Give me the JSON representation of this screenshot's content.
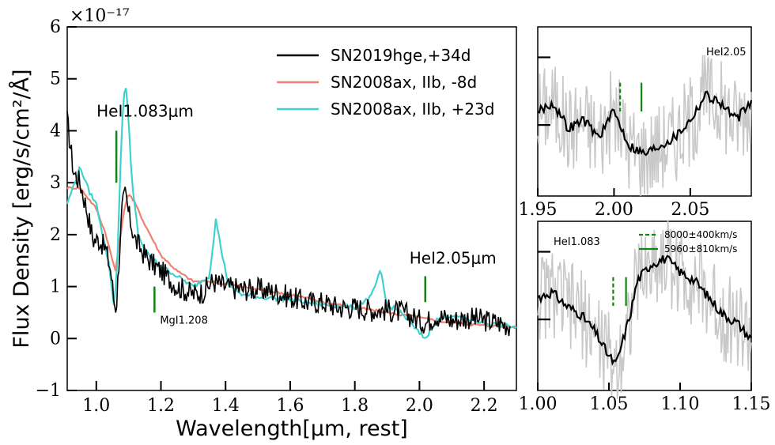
{
  "chart_data": [
    {
      "type": "line",
      "panel": "main",
      "xlabel": "Wavelength[μm, rest]",
      "ylabel": "Flux Density [erg/s/cm²/Å]",
      "scale_label": "×10⁻¹⁷",
      "xlim": [
        0.91,
        2.3
      ],
      "ylim": [
        -1,
        6
      ],
      "xticks": [
        1.0,
        1.2,
        1.4,
        1.6,
        1.8,
        2.0,
        2.2
      ],
      "xticklabels": [
        "1.0",
        "1.2",
        "1.4",
        "1.6",
        "1.8",
        "2.0",
        "2.2"
      ],
      "yticks": [
        -1,
        0,
        1,
        2,
        3,
        4,
        5,
        6
      ],
      "yticklabels": [
        "−1",
        "0",
        "1",
        "2",
        "3",
        "4",
        "5",
        "6"
      ],
      "legend_position": "top-right",
      "series": [
        {
          "name": "SN2019hge,+34d",
          "color": "#000000",
          "x": [
            0.91,
            0.93,
            0.95,
            0.97,
            0.99,
            1.01,
            1.03,
            1.045,
            1.055,
            1.062,
            1.07,
            1.08,
            1.09,
            1.1,
            1.12,
            1.15,
            1.18,
            1.2,
            1.25,
            1.3,
            1.33,
            1.36,
            1.4,
            1.45,
            1.5,
            1.55,
            1.6,
            1.65,
            1.7,
            1.75,
            1.8,
            1.85,
            1.9,
            1.95,
            2.0,
            2.02,
            2.05,
            2.1,
            2.15,
            2.2,
            2.25,
            2.28
          ],
          "y": [
            4.2,
            3.2,
            3.0,
            2.5,
            1.9,
            1.9,
            1.7,
            1.3,
            0.7,
            0.6,
            1.5,
            2.5,
            2.8,
            2.4,
            1.9,
            1.6,
            1.4,
            1.3,
            1.0,
            0.85,
            0.9,
            1.1,
            1.0,
            0.95,
            0.95,
            0.9,
            0.8,
            0.7,
            0.7,
            0.6,
            0.6,
            0.55,
            0.55,
            0.5,
            0.35,
            0.3,
            0.45,
            0.35,
            0.4,
            0.35,
            0.3,
            0.25
          ]
        },
        {
          "name": "SN2008ax, IIb, -8d",
          "color": "#f08070",
          "x": [
            0.91,
            0.95,
            1.0,
            1.03,
            1.05,
            1.06,
            1.07,
            1.09,
            1.1,
            1.12,
            1.15,
            1.2,
            1.25,
            1.3,
            1.35,
            1.4,
            1.45,
            1.5,
            1.55,
            1.6,
            1.7,
            1.8,
            1.9,
            2.0,
            2.05,
            2.1,
            2.2,
            2.3
          ],
          "y": [
            2.9,
            2.9,
            2.5,
            2.0,
            1.5,
            1.3,
            1.8,
            2.6,
            2.8,
            2.6,
            2.2,
            1.6,
            1.3,
            1.1,
            1.1,
            1.05,
            1.0,
            0.95,
            0.9,
            0.85,
            0.7,
            0.6,
            0.5,
            0.4,
            0.35,
            0.3,
            0.25,
            0.22
          ]
        },
        {
          "name": "SN2008ax, IIb, +23d",
          "color": "#40d0d0",
          "x": [
            0.91,
            0.95,
            0.98,
            1.0,
            1.02,
            1.04,
            1.055,
            1.065,
            1.08,
            1.09,
            1.1,
            1.11,
            1.13,
            1.15,
            1.18,
            1.2,
            1.25,
            1.3,
            1.35,
            1.37,
            1.39,
            1.41,
            1.45,
            1.5,
            1.6,
            1.7,
            1.8,
            1.85,
            1.88,
            1.9,
            1.92,
            1.95,
            2.0,
            2.02,
            2.05,
            2.1,
            2.2,
            2.3
          ],
          "y": [
            2.6,
            3.3,
            2.8,
            2.6,
            2.0,
            1.4,
            0.6,
            1.5,
            4.2,
            5.0,
            4.2,
            3.0,
            2.0,
            1.7,
            1.5,
            1.4,
            1.2,
            1.0,
            1.2,
            2.3,
            1.6,
            1.0,
            0.85,
            0.8,
            0.75,
            0.65,
            0.6,
            0.8,
            1.3,
            0.6,
            0.6,
            0.45,
            0.1,
            0.0,
            0.35,
            0.45,
            0.3,
            0.22
          ]
        }
      ],
      "annotations": [
        {
          "label": "HeI1.083μm",
          "x": 1.062,
          "y_range": [
            3.0,
            4.0
          ]
        },
        {
          "label": "MgI1.208",
          "x": 1.18,
          "y_range": [
            0.5,
            1.0
          ]
        },
        {
          "label": "HeI2.05μm",
          "x": 2.018,
          "y_range": [
            0.7,
            1.2
          ]
        }
      ]
    },
    {
      "type": "line",
      "panel": "inset-top",
      "label": "HeI2.05",
      "xlim": [
        1.95,
        2.09
      ],
      "xticks": [
        1.95,
        2.0,
        2.05
      ],
      "xticklabels": [
        "1.95",
        "2.00",
        "2.05"
      ],
      "series": [
        {
          "color": "#000000",
          "x": [
            1.95,
            1.96,
            1.97,
            1.98,
            1.99,
            2.0,
            2.01,
            2.02,
            2.03,
            2.04,
            2.05,
            2.06,
            2.07,
            2.08,
            2.09
          ],
          "y": [
            0.5,
            0.55,
            0.4,
            0.45,
            0.35,
            0.5,
            0.3,
            0.25,
            0.3,
            0.35,
            0.45,
            0.6,
            0.55,
            0.45,
            0.55
          ]
        }
      ],
      "markers": [
        {
          "x": 2.004,
          "style": "dashed"
        },
        {
          "x": 2.018,
          "style": "solid"
        }
      ]
    },
    {
      "type": "line",
      "panel": "inset-bottom",
      "label": "HeI1.083",
      "xlim": [
        1.0,
        1.15
      ],
      "xticks": [
        1.0,
        1.05,
        1.1,
        1.15
      ],
      "xticklabels": [
        "1.00",
        "1.05",
        "1.10",
        "1.15"
      ],
      "legend": [
        {
          "label": "8000±400km/s",
          "style": "dashed"
        },
        {
          "label": "5960±810km/s",
          "style": "solid"
        }
      ],
      "series": [
        {
          "color": "#000000",
          "x": [
            1.0,
            1.01,
            1.02,
            1.03,
            1.04,
            1.05,
            1.055,
            1.06,
            1.065,
            1.07,
            1.08,
            1.09,
            1.1,
            1.11,
            1.12,
            1.13,
            1.14,
            1.15
          ],
          "y": [
            0.55,
            0.58,
            0.5,
            0.45,
            0.35,
            0.2,
            0.15,
            0.3,
            0.45,
            0.65,
            0.75,
            0.78,
            0.7,
            0.65,
            0.55,
            0.45,
            0.4,
            0.3
          ]
        }
      ],
      "markers": [
        {
          "x": 1.053,
          "style": "dashed"
        },
        {
          "x": 1.062,
          "style": "solid"
        }
      ]
    }
  ]
}
